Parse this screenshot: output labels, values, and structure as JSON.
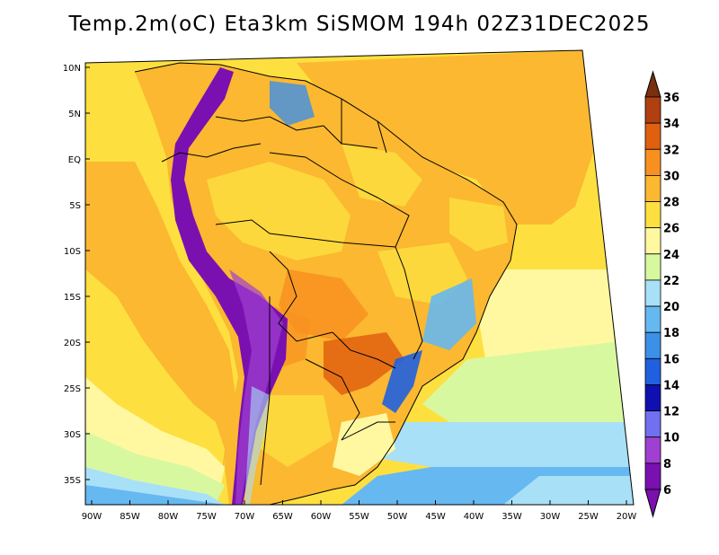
{
  "title": "Temp.2m(oC) Eta3km SiSMOM 194h 02Z31DEC2025",
  "map": {
    "lon_labels": [
      "90W",
      "85W",
      "80W",
      "75W",
      "70W",
      "65W",
      "60W",
      "55W",
      "50W",
      "45W",
      "40W",
      "35W",
      "30W",
      "25W",
      "20W"
    ],
    "lat_labels": [
      "10N",
      "5N",
      "EQ",
      "5S",
      "10S",
      "15S",
      "20S",
      "25S",
      "30S",
      "35S"
    ]
  },
  "colorbar": {
    "labels": [
      "6",
      "8",
      "10",
      "12",
      "14",
      "16",
      "18",
      "20",
      "22",
      "24",
      "26",
      "28",
      "30",
      "32",
      "34",
      "36"
    ],
    "colors": [
      "#7a10b0",
      "#a040d0",
      "#7070f0",
      "#1010b0",
      "#2060e0",
      "#3c90e8",
      "#66b8f0",
      "#a8e0f8",
      "#d8f8a0",
      "#fff8a0",
      "#fde040",
      "#fbb830",
      "#f89020",
      "#e06010",
      "#b04010",
      "#783010"
    ]
  }
}
